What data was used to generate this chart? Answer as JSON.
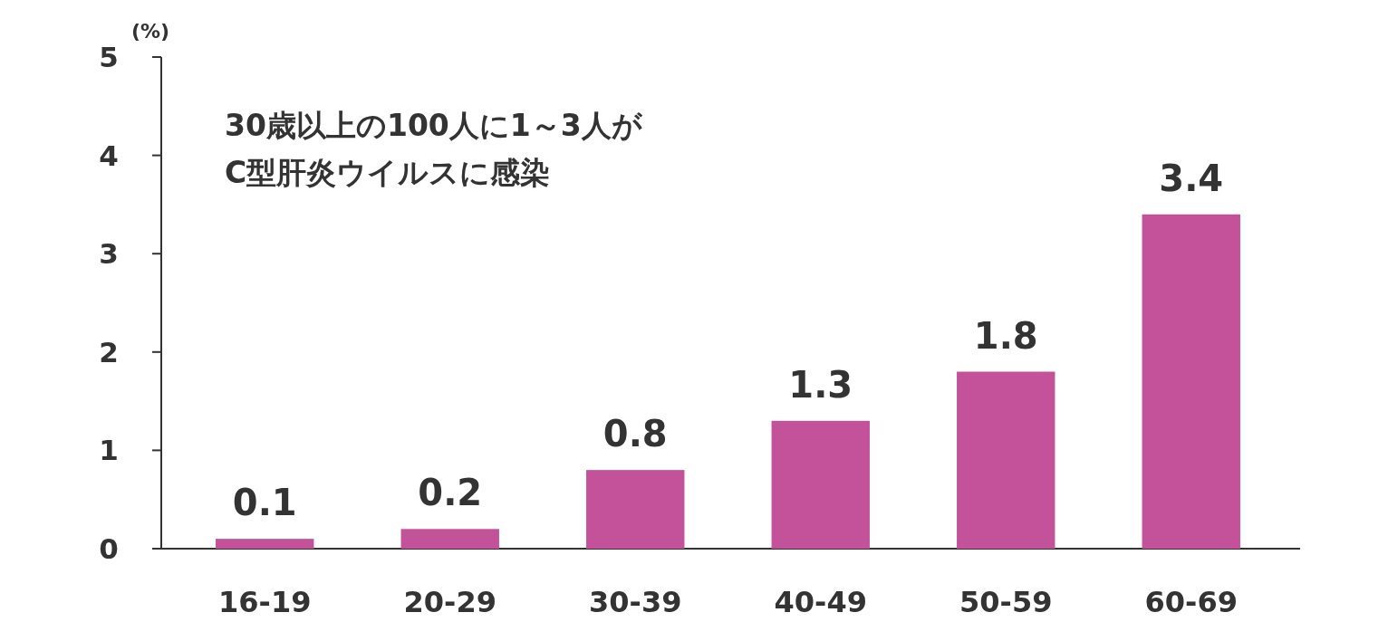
{
  "chart_data": {
    "type": "bar",
    "ylabel": "(%)",
    "categories": [
      "16-19",
      "20-29",
      "30-39",
      "40-49",
      "50-59",
      "60-69"
    ],
    "values": [
      0.1,
      0.2,
      0.8,
      1.3,
      1.8,
      3.4
    ],
    "color": "#c4529a",
    "ylim": [
      0,
      5
    ],
    "yticks": [
      0,
      1,
      2,
      3,
      4,
      5
    ],
    "data_labels": true,
    "grid": false,
    "annotations": [
      "30歳以上の100人に1～3人が\nC型肝炎ウイルスに感染"
    ]
  }
}
